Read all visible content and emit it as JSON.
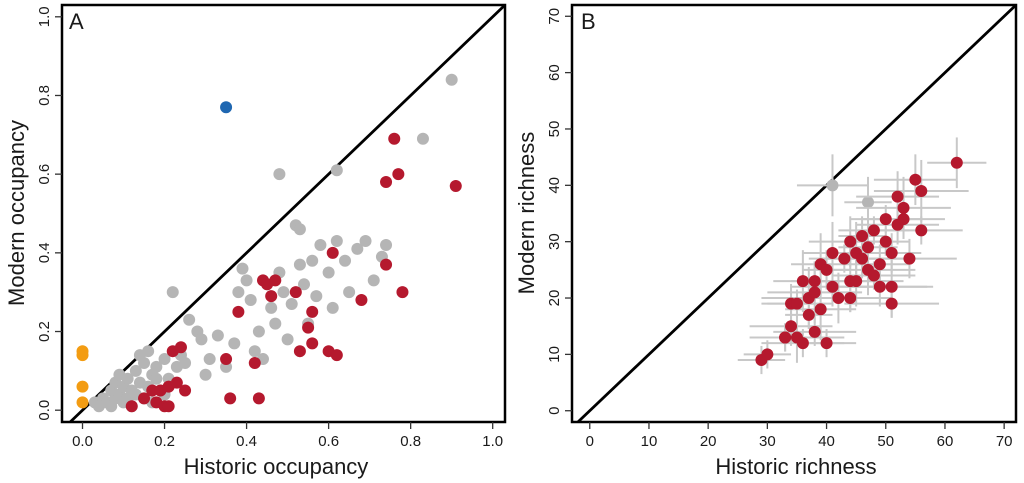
{
  "colors": {
    "red": "#b5192e",
    "gray": "#b5b5b5",
    "blue": "#1f67b1",
    "orange": "#f39c12",
    "errorbar": "#c8c8c8",
    "line": "#000000"
  },
  "chart_data": [
    {
      "panel": "A",
      "type": "scatter",
      "xlabel": "Historic occupancy",
      "ylabel": "Modern occupancy",
      "xlim": [
        -0.05,
        1.03
      ],
      "ylim": [
        -0.03,
        1.03
      ],
      "xticks": [
        "0.0",
        "0.2",
        "0.4",
        "0.6",
        "0.8",
        "1.0"
      ],
      "yticks": [
        "0.0",
        "0.2",
        "0.4",
        "0.6",
        "0.8",
        "1.0"
      ],
      "reference_line": "1:1",
      "series": [
        {
          "color": "gray",
          "points": [
            [
              0.03,
              0.02
            ],
            [
              0.04,
              0.01
            ],
            [
              0.05,
              0.03
            ],
            [
              0.06,
              0.02
            ],
            [
              0.07,
              0.05
            ],
            [
              0.07,
              0.01
            ],
            [
              0.08,
              0.07
            ],
            [
              0.08,
              0.03
            ],
            [
              0.09,
              0.04
            ],
            [
              0.09,
              0.09
            ],
            [
              0.1,
              0.02
            ],
            [
              0.1,
              0.06
            ],
            [
              0.11,
              0.03
            ],
            [
              0.11,
              0.08
            ],
            [
              0.12,
              0.01
            ],
            [
              0.12,
              0.05
            ],
            [
              0.13,
              0.1
            ],
            [
              0.13,
              0.04
            ],
            [
              0.14,
              0.07
            ],
            [
              0.15,
              0.03
            ],
            [
              0.15,
              0.12
            ],
            [
              0.16,
              0.06
            ],
            [
              0.16,
              0.15
            ],
            [
              0.17,
              0.09
            ],
            [
              0.17,
              0.02
            ],
            [
              0.18,
              0.11
            ],
            [
              0.19,
              0.05
            ],
            [
              0.2,
              0.13
            ],
            [
              0.21,
              0.08
            ],
            [
              0.22,
              0.3
            ],
            [
              0.23,
              0.11
            ],
            [
              0.24,
              0.14
            ],
            [
              0.25,
              0.12
            ],
            [
              0.26,
              0.23
            ],
            [
              0.28,
              0.2
            ],
            [
              0.29,
              0.18
            ],
            [
              0.3,
              0.09
            ],
            [
              0.31,
              0.13
            ],
            [
              0.33,
              0.19
            ],
            [
              0.35,
              0.11
            ],
            [
              0.37,
              0.17
            ],
            [
              0.38,
              0.3
            ],
            [
              0.39,
              0.36
            ],
            [
              0.4,
              0.33
            ],
            [
              0.41,
              0.28
            ],
            [
              0.42,
              0.15
            ],
            [
              0.43,
              0.2
            ],
            [
              0.44,
              0.13
            ],
            [
              0.45,
              0.32
            ],
            [
              0.46,
              0.26
            ],
            [
              0.47,
              0.22
            ],
            [
              0.48,
              0.6
            ],
            [
              0.48,
              0.35
            ],
            [
              0.49,
              0.3
            ],
            [
              0.5,
              0.18
            ],
            [
              0.51,
              0.27
            ],
            [
              0.52,
              0.47
            ],
            [
              0.53,
              0.46
            ],
            [
              0.53,
              0.37
            ],
            [
              0.54,
              0.32
            ],
            [
              0.55,
              0.22
            ],
            [
              0.56,
              0.38
            ],
            [
              0.57,
              0.29
            ],
            [
              0.58,
              0.42
            ],
            [
              0.6,
              0.35
            ],
            [
              0.61,
              0.26
            ],
            [
              0.62,
              0.61
            ],
            [
              0.62,
              0.43
            ],
            [
              0.64,
              0.38
            ],
            [
              0.65,
              0.3
            ],
            [
              0.67,
              0.41
            ],
            [
              0.69,
              0.43
            ],
            [
              0.71,
              0.33
            ],
            [
              0.73,
              0.39
            ],
            [
              0.74,
              0.42
            ],
            [
              0.83,
              0.69
            ],
            [
              0.9,
              0.84
            ],
            [
              0.14,
              0.14
            ],
            [
              0.18,
              0.08
            ],
            [
              0.2,
              0.04
            ]
          ]
        },
        {
          "color": "red",
          "points": [
            [
              0.12,
              0.01
            ],
            [
              0.15,
              0.03
            ],
            [
              0.17,
              0.05
            ],
            [
              0.18,
              0.02
            ],
            [
              0.19,
              0.05
            ],
            [
              0.2,
              0.01
            ],
            [
              0.21,
              0.06
            ],
            [
              0.22,
              0.15
            ],
            [
              0.23,
              0.07
            ],
            [
              0.24,
              0.16
            ],
            [
              0.25,
              0.05
            ],
            [
              0.35,
              0.13
            ],
            [
              0.36,
              0.03
            ],
            [
              0.42,
              0.12
            ],
            [
              0.43,
              0.03
            ],
            [
              0.44,
              0.33
            ],
            [
              0.45,
              0.32
            ],
            [
              0.46,
              0.29
            ],
            [
              0.47,
              0.33
            ],
            [
              0.52,
              0.3
            ],
            [
              0.53,
              0.15
            ],
            [
              0.55,
              0.21
            ],
            [
              0.56,
              0.17
            ],
            [
              0.56,
              0.25
            ],
            [
              0.6,
              0.15
            ],
            [
              0.61,
              0.4
            ],
            [
              0.62,
              0.14
            ],
            [
              0.68,
              0.28
            ],
            [
              0.74,
              0.58
            ],
            [
              0.74,
              0.37
            ],
            [
              0.76,
              0.69
            ],
            [
              0.77,
              0.6
            ],
            [
              0.78,
              0.3
            ],
            [
              0.91,
              0.57
            ],
            [
              0.21,
              0.01
            ],
            [
              0.38,
              0.25
            ]
          ]
        },
        {
          "color": "blue",
          "points": [
            [
              0.35,
              0.77
            ]
          ]
        },
        {
          "color": "orange",
          "points": [
            [
              0.0,
              0.15
            ],
            [
              0.0,
              0.14
            ],
            [
              0.0,
              0.06
            ],
            [
              0.0,
              0.02
            ]
          ]
        }
      ]
    },
    {
      "panel": "B",
      "type": "scatter",
      "xlabel": "Historic richness",
      "ylabel": "Modern richness",
      "xlim": [
        -3,
        72
      ],
      "ylim": [
        -2,
        72
      ],
      "xticks": [
        "0",
        "10",
        "20",
        "30",
        "40",
        "50",
        "60",
        "70"
      ],
      "yticks": [
        "0",
        "10",
        "20",
        "30",
        "40",
        "50",
        "60",
        "70"
      ],
      "reference_line": "1:1",
      "series": [
        {
          "color": "gray",
          "points": [
            [
              41,
              40
            ],
            [
              47,
              37
            ]
          ]
        },
        {
          "color": "red",
          "points": [
            [
              29,
              9
            ],
            [
              30,
              10
            ],
            [
              33,
              13
            ],
            [
              34,
              19
            ],
            [
              34,
              15
            ],
            [
              35,
              13
            ],
            [
              35,
              19
            ],
            [
              36,
              12
            ],
            [
              36,
              23
            ],
            [
              37,
              20
            ],
            [
              37,
              17
            ],
            [
              38,
              21
            ],
            [
              38,
              23
            ],
            [
              39,
              18
            ],
            [
              39,
              26
            ],
            [
              40,
              25
            ],
            [
              40,
              12
            ],
            [
              41,
              28
            ],
            [
              41,
              22
            ],
            [
              42,
              20
            ],
            [
              43,
              27
            ],
            [
              44,
              23
            ],
            [
              44,
              30
            ],
            [
              44,
              20
            ],
            [
              45,
              28
            ],
            [
              45,
              23
            ],
            [
              46,
              31
            ],
            [
              46,
              27
            ],
            [
              47,
              29
            ],
            [
              47,
              25
            ],
            [
              48,
              24
            ],
            [
              48,
              32
            ],
            [
              49,
              22
            ],
            [
              49,
              26
            ],
            [
              50,
              30
            ],
            [
              50,
              34
            ],
            [
              51,
              28
            ],
            [
              51,
              19
            ],
            [
              51,
              22
            ],
            [
              52,
              33
            ],
            [
              52,
              38
            ],
            [
              53,
              34
            ],
            [
              53,
              36
            ],
            [
              54,
              27
            ],
            [
              55,
              41
            ],
            [
              56,
              32
            ],
            [
              56,
              39
            ],
            [
              62,
              44
            ],
            [
              33,
              13
            ],
            [
              38,
              14
            ]
          ]
        }
      ]
    }
  ]
}
